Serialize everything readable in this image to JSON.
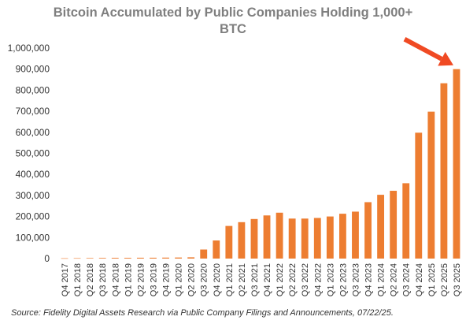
{
  "chart_data": {
    "type": "bar",
    "title_line1": "Bitcoin Accumulated by Public Companies Holding 1,000+",
    "title_line2": "BTC",
    "xlabel": "",
    "ylabel": "",
    "ylim": [
      0,
      1000000
    ],
    "yticks": [
      "0",
      "100,000",
      "200,000",
      "300,000",
      "400,000",
      "500,000",
      "600,000",
      "700,000",
      "800,000",
      "900,000",
      "1,000,000"
    ],
    "grid": false,
    "legend": "none",
    "bar_color": "#ed7d31",
    "annotation_color": "#f04a23",
    "categories": [
      "Q4 2017",
      "Q1 2018",
      "Q2 2018",
      "Q3 2018",
      "Q4 2018",
      "Q1 2019",
      "Q2 2019",
      "Q3 2019",
      "Q4 2019",
      "Q1 2020",
      "Q2 2020",
      "Q3 2020",
      "Q4 2020",
      "Q1 2021",
      "Q2 2021",
      "Q3 2021",
      "Q4 2021",
      "Q1 2022",
      "Q2 2022",
      "Q3 2022",
      "Q4 2022",
      "Q1 2023",
      "Q2 2023",
      "Q3 2023",
      "Q4 2023",
      "Q1 2024",
      "Q2 2024",
      "Q3 2024",
      "Q4 2024",
      "Q1 2025",
      "Q2 2025",
      "Q3 2025"
    ],
    "values": [
      1500,
      2000,
      2500,
      3000,
      3500,
      3500,
      4000,
      4000,
      4500,
      5000,
      6000,
      43000,
      86000,
      155000,
      173000,
      188000,
      205000,
      218000,
      190000,
      190000,
      193000,
      200000,
      213000,
      223000,
      268000,
      303000,
      322000,
      358000,
      598000,
      698000,
      833000,
      900000
    ],
    "source": "Source: Fidelity Digital Assets Research via Public Company Filings and Announcements, 07/22/25."
  }
}
